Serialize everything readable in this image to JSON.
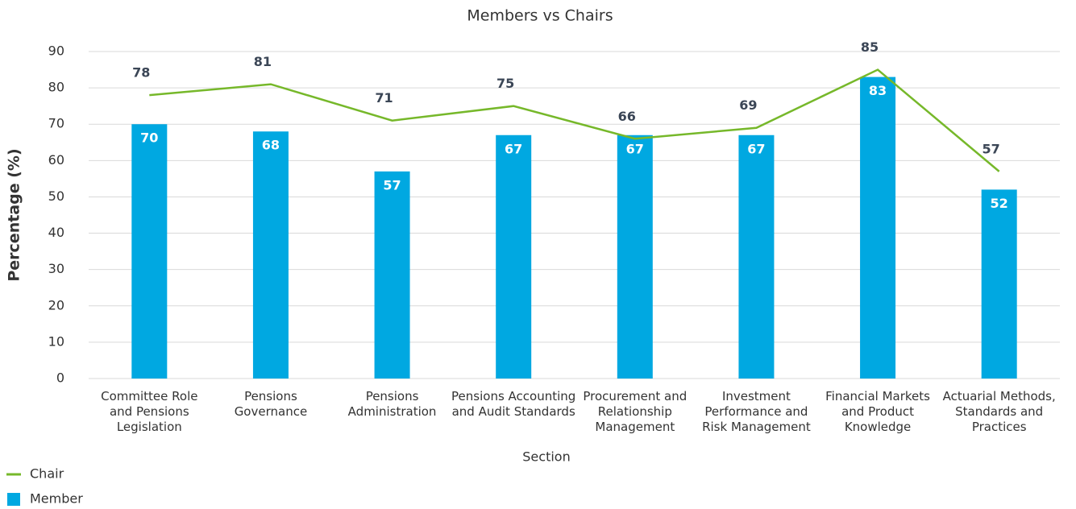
{
  "chart_data": {
    "type": "bar",
    "title": "Members vs Chairs",
    "x_label": "Section",
    "y_label": "Percentage (%)",
    "categories": [
      "Committee Role\nand Pensions\nLegislation",
      "Pensions\nGovernance",
      "Pensions\nAdministration",
      "Pensions Accounting\nand Audit Standards",
      "Procurement and\nRelationship\nManagement",
      "Investment\nPerformance and\nRisk Management",
      "Financial Markets\nand Product\nKnowledge",
      "Actuarial Methods,\nStandards and\nPractices"
    ],
    "series": [
      {
        "name": "Chair",
        "type": "line",
        "color": "#76b82a",
        "values": [
          78,
          81,
          71,
          75,
          66,
          69,
          85,
          57
        ]
      },
      {
        "name": "Member",
        "type": "bar",
        "color": "#00a8e1",
        "values": [
          70,
          68,
          57,
          67,
          67,
          67,
          83,
          52
        ]
      }
    ],
    "ylim": [
      0,
      90
    ],
    "yticks": [
      0,
      10,
      20,
      30,
      40,
      50,
      60,
      70,
      80,
      90
    ],
    "grid": true,
    "legend": "bottom-left"
  }
}
